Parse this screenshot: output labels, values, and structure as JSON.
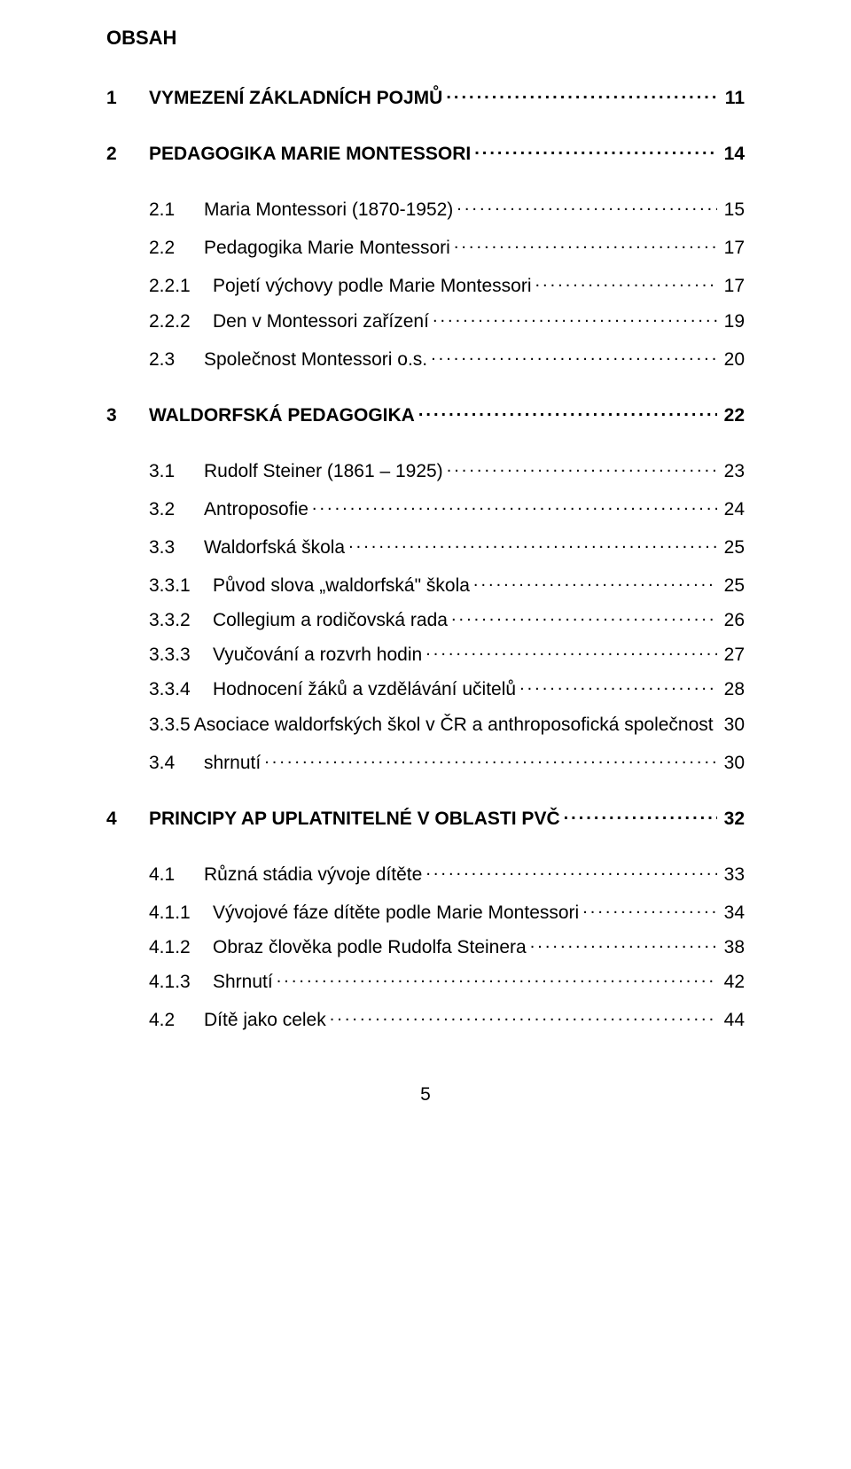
{
  "heading": "OBSAH",
  "page_number": "5",
  "entries": [
    {
      "level": 1,
      "num": "1",
      "label": "VYMEZENÍ ZÁKLADNÍCH POJMŮ",
      "page": "11",
      "bold": true
    },
    {
      "level": 1,
      "num": "2",
      "label": "PEDAGOGIKA MARIE MONTESSORI",
      "page": "14",
      "bold": true
    },
    {
      "level": 2,
      "num": "2.1",
      "label": "Maria Montessori (1870-1952)",
      "page": "15",
      "bold": false
    },
    {
      "level": 2,
      "num": "2.2",
      "label": "Pedagogika Marie Montessori",
      "page": "17",
      "bold": false
    },
    {
      "level": 3,
      "num": "2.2.1",
      "label": "Pojetí výchovy podle Marie Montessori",
      "page": "17",
      "bold": false
    },
    {
      "level": 3,
      "num": "2.2.2",
      "label": "Den v Montessori zařízení",
      "page": "19",
      "bold": false
    },
    {
      "level": 2,
      "num": "2.3",
      "label": "Společnost Montessori o.s.",
      "page": "20",
      "bold": false
    },
    {
      "level": 1,
      "num": "3",
      "label": "WALDORFSKÁ PEDAGOGIKA",
      "page": "22",
      "bold": true
    },
    {
      "level": 2,
      "num": "3.1",
      "label": "Rudolf Steiner (1861 – 1925)",
      "page": "23",
      "bold": false
    },
    {
      "level": 2,
      "num": "3.2",
      "label": "Antroposofie",
      "page": "24",
      "bold": false
    },
    {
      "level": 2,
      "num": "3.3",
      "label": "Waldorfská škola",
      "page": "25",
      "bold": false
    },
    {
      "level": 3,
      "num": "3.3.1",
      "label": "Původ slova „waldorfská\" škola",
      "page": "25",
      "bold": false
    },
    {
      "level": 3,
      "num": "3.3.2",
      "label": "Collegium a rodičovská rada",
      "page": "26",
      "bold": false
    },
    {
      "level": 3,
      "num": "3.3.3",
      "label": "Vyučování a rozvrh hodin",
      "page": "27",
      "bold": false
    },
    {
      "level": 3,
      "num": "3.3.4",
      "label": "Hodnocení žáků a vzdělávání učitelů",
      "page": "28",
      "bold": false
    },
    {
      "level": 3,
      "num": "3.3.5",
      "label": "Asociace waldorfských škol v ČR a anthroposofická společnost",
      "page": "30",
      "bold": false
    },
    {
      "level": 2,
      "num": "3.4",
      "label": "shrnutí",
      "page": "30",
      "bold": false
    },
    {
      "level": 1,
      "num": "4",
      "label": "PRINCIPY AP UPLATNITELNÉ V OBLASTI  PVČ",
      "page": "32",
      "bold": true
    },
    {
      "level": 2,
      "num": "4.1",
      "label": "Různá stádia vývoje dítěte",
      "page": "33",
      "bold": false
    },
    {
      "level": 3,
      "num": "4.1.1",
      "label": "Vývojové fáze dítěte podle Marie Montessori",
      "page": "34",
      "bold": false
    },
    {
      "level": 3,
      "num": "4.1.2",
      "label": "Obraz člověka podle Rudolfa Steinera",
      "page": "38",
      "bold": false
    },
    {
      "level": 3,
      "num": "4.1.3",
      "label": "Shrnutí",
      "page": "42",
      "bold": false
    },
    {
      "level": 2,
      "num": "4.2",
      "label": "Dítě jako celek",
      "page": "44",
      "bold": false
    }
  ]
}
